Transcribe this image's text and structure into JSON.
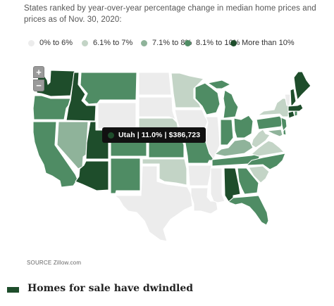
{
  "subtitle": "States ranked by year-over-year percentage change in median home prices and prices as of Nov. 30, 2020:",
  "legend": [
    {
      "label": "0% to 6%",
      "color": "#ececec"
    },
    {
      "label": "6.1% to 7%",
      "color": "#c3d4c6"
    },
    {
      "label": "7.1% to 8%",
      "color": "#8fb39a"
    },
    {
      "label": "8.1% to 10%",
      "color": "#4f8c64"
    },
    {
      "label": "More than 10%",
      "color": "#1e4d2b"
    }
  ],
  "zoom": {
    "in_label": "+",
    "out_label": "−"
  },
  "tooltip": {
    "text": "Utah | 11.0% | $386,723",
    "color": "#1e4d2b"
  },
  "source": "SOURCE Zillow.com",
  "next_section": {
    "title": "Homes for sale have dwindled",
    "accent_color": "#1e4d2b"
  },
  "map_data": {
    "type": "choropleth",
    "region": "United States",
    "highlighted_state": "Utah",
    "states": [
      {
        "name": "Washington",
        "bucket": 4
      },
      {
        "name": "Oregon",
        "bucket": 3
      },
      {
        "name": "California",
        "bucket": 3
      },
      {
        "name": "Idaho",
        "bucket": 4
      },
      {
        "name": "Nevada",
        "bucket": 2
      },
      {
        "name": "Utah",
        "bucket": 4
      },
      {
        "name": "Arizona",
        "bucket": 4
      },
      {
        "name": "Montana",
        "bucket": 3
      },
      {
        "name": "Wyoming",
        "bucket": 0
      },
      {
        "name": "Colorado",
        "bucket": 3
      },
      {
        "name": "New Mexico",
        "bucket": 3
      },
      {
        "name": "North Dakota",
        "bucket": 0
      },
      {
        "name": "South Dakota",
        "bucket": 0
      },
      {
        "name": "Nebraska",
        "bucket": 1
      },
      {
        "name": "Kansas",
        "bucket": 3
      },
      {
        "name": "Oklahoma",
        "bucket": 1
      },
      {
        "name": "Texas",
        "bucket": 0
      },
      {
        "name": "Minnesota",
        "bucket": 1
      },
      {
        "name": "Iowa",
        "bucket": 0
      },
      {
        "name": "Missouri",
        "bucket": 3
      },
      {
        "name": "Arkansas",
        "bucket": 0
      },
      {
        "name": "Louisiana",
        "bucket": 0
      },
      {
        "name": "Wisconsin",
        "bucket": 3
      },
      {
        "name": "Illinois",
        "bucket": 0
      },
      {
        "name": "Michigan",
        "bucket": 3
      },
      {
        "name": "Indiana",
        "bucket": 3
      },
      {
        "name": "Ohio",
        "bucket": 3
      },
      {
        "name": "Kentucky",
        "bucket": 2
      },
      {
        "name": "Tennessee",
        "bucket": 3
      },
      {
        "name": "Mississippi",
        "bucket": 0
      },
      {
        "name": "Alabama",
        "bucket": 4
      },
      {
        "name": "Georgia",
        "bucket": 3
      },
      {
        "name": "Florida",
        "bucket": 3
      },
      {
        "name": "South Carolina",
        "bucket": 1
      },
      {
        "name": "North Carolina",
        "bucket": 3
      },
      {
        "name": "Virginia",
        "bucket": 1
      },
      {
        "name": "West Virginia",
        "bucket": 1
      },
      {
        "name": "Pennsylvania",
        "bucket": 3
      },
      {
        "name": "New York",
        "bucket": 1
      },
      {
        "name": "New Jersey",
        "bucket": 3
      },
      {
        "name": "Delaware",
        "bucket": 3
      },
      {
        "name": "Maryland",
        "bucket": 2
      },
      {
        "name": "Connecticut",
        "bucket": 4
      },
      {
        "name": "Rhode Island",
        "bucket": 3
      },
      {
        "name": "Massachusetts",
        "bucket": 4
      },
      {
        "name": "Vermont",
        "bucket": 0
      },
      {
        "name": "New Hampshire",
        "bucket": 4
      },
      {
        "name": "Maine",
        "bucket": 4
      }
    ]
  }
}
